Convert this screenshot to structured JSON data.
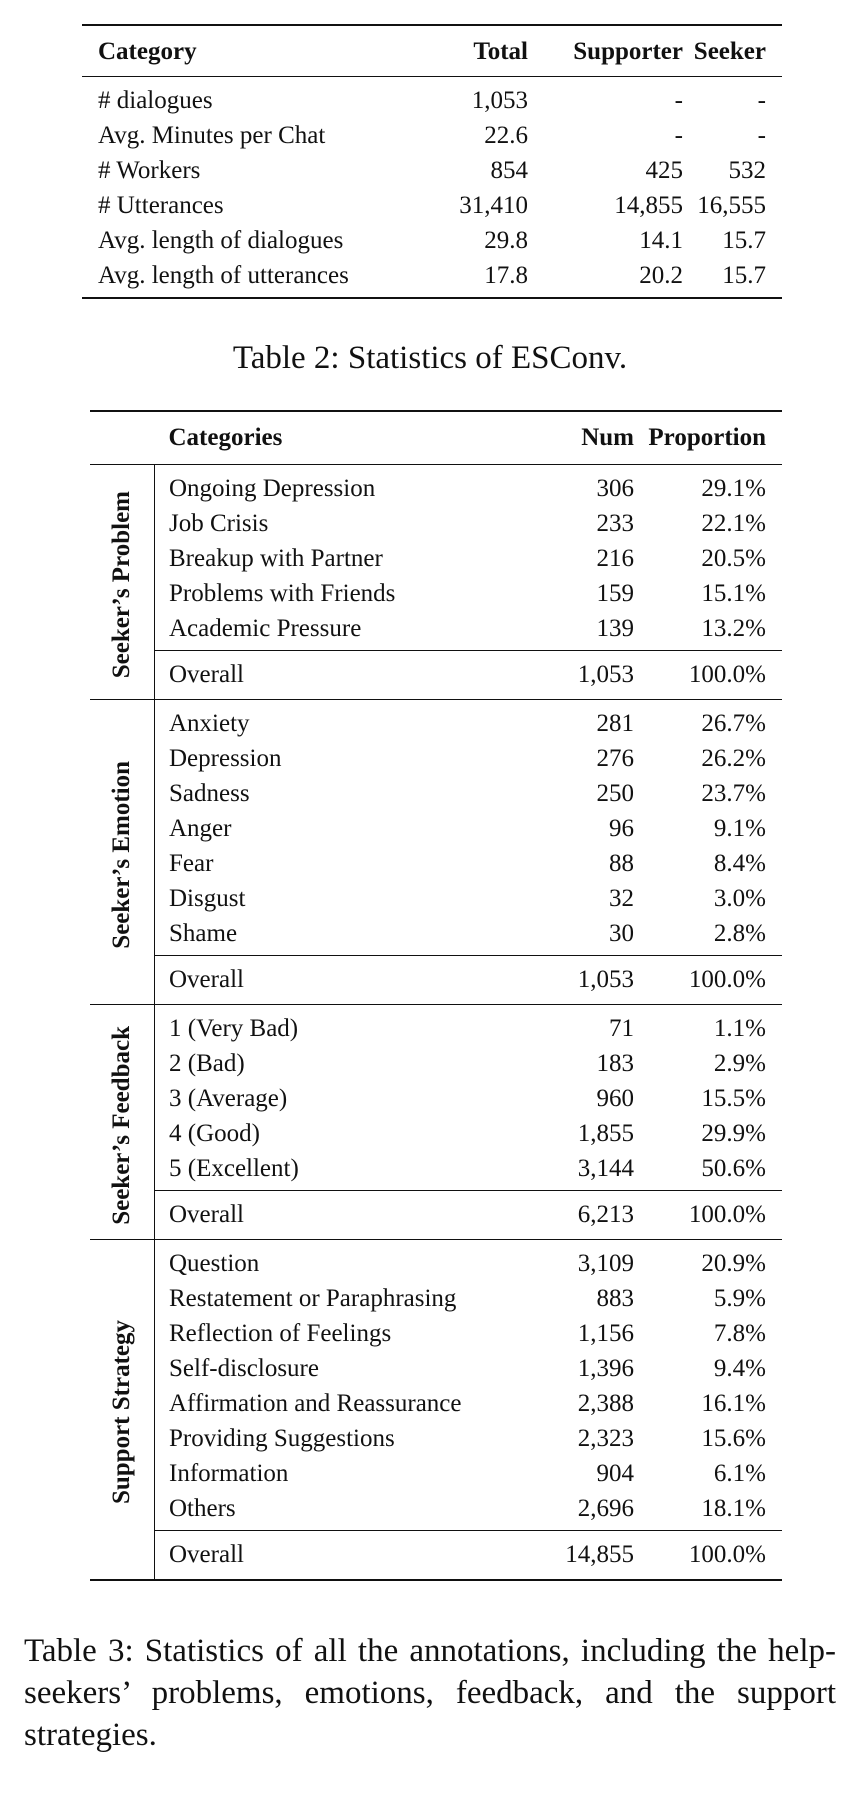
{
  "table2": {
    "headers": [
      "Category",
      "Total",
      "Supporter",
      "Seeker"
    ],
    "rows": [
      [
        "# dialogues",
        "1,053",
        "-",
        "-"
      ],
      [
        "Avg. Minutes per Chat",
        "22.6",
        "-",
        "-"
      ],
      [
        "# Workers",
        "854",
        "425",
        "532"
      ],
      [
        "# Utterances",
        "31,410",
        "14,855",
        "16,555"
      ],
      [
        "Avg. length of dialogues",
        "29.8",
        "14.1",
        "15.7"
      ],
      [
        "Avg. length of utterances",
        "17.8",
        "20.2",
        "15.7"
      ]
    ],
    "caption": "Table 2: Statistics of ESConv."
  },
  "table3": {
    "headers": [
      "",
      "Categories",
      "Num",
      "Proportion"
    ],
    "groups": [
      {
        "label": "Seeker’s Problem",
        "rows": [
          [
            "Ongoing Depression",
            "306",
            "29.1%"
          ],
          [
            "Job Crisis",
            "233",
            "22.1%"
          ],
          [
            "Breakup with Partner",
            "216",
            "20.5%"
          ],
          [
            "Problems with Friends",
            "159",
            "15.1%"
          ],
          [
            "Academic Pressure",
            "139",
            "13.2%"
          ]
        ],
        "overall": [
          "Overall",
          "1,053",
          "100.0%"
        ]
      },
      {
        "label": "Seeker’s Emotion",
        "rows": [
          [
            "Anxiety",
            "281",
            "26.7%"
          ],
          [
            "Depression",
            "276",
            "26.2%"
          ],
          [
            "Sadness",
            "250",
            "23.7%"
          ],
          [
            "Anger",
            "96",
            "9.1%"
          ],
          [
            "Fear",
            "88",
            "8.4%"
          ],
          [
            "Disgust",
            "32",
            "3.0%"
          ],
          [
            "Shame",
            "30",
            "2.8%"
          ]
        ],
        "overall": [
          "Overall",
          "1,053",
          "100.0%"
        ]
      },
      {
        "label": "Seeker’s Feedback",
        "rows": [
          [
            "1 (Very Bad)",
            "71",
            "1.1%"
          ],
          [
            "2 (Bad)",
            "183",
            "2.9%"
          ],
          [
            "3 (Average)",
            "960",
            "15.5%"
          ],
          [
            "4 (Good)",
            "1,855",
            "29.9%"
          ],
          [
            "5 (Excellent)",
            "3,144",
            "50.6%"
          ]
        ],
        "overall": [
          "Overall",
          "6,213",
          "100.0%"
        ]
      },
      {
        "label": "Support Strategy",
        "rows": [
          [
            "Question",
            "3,109",
            "20.9%"
          ],
          [
            "Restatement or Paraphrasing",
            "883",
            "5.9%"
          ],
          [
            "Reflection of Feelings",
            "1,156",
            "7.8%"
          ],
          [
            "Self-disclosure",
            "1,396",
            "9.4%"
          ],
          [
            "Affirmation and Reassurance",
            "2,388",
            "16.1%"
          ],
          [
            "Providing Suggestions",
            "2,323",
            "15.6%"
          ],
          [
            "Information",
            "904",
            "6.1%"
          ],
          [
            "Others",
            "2,696",
            "18.1%"
          ]
        ],
        "overall": [
          "Overall",
          "14,855",
          "100.0%"
        ]
      }
    ],
    "caption": "Table 3: Statistics of all the annotations, including the help-seekers’ problems, emotions, feedback, and the support strategies."
  }
}
